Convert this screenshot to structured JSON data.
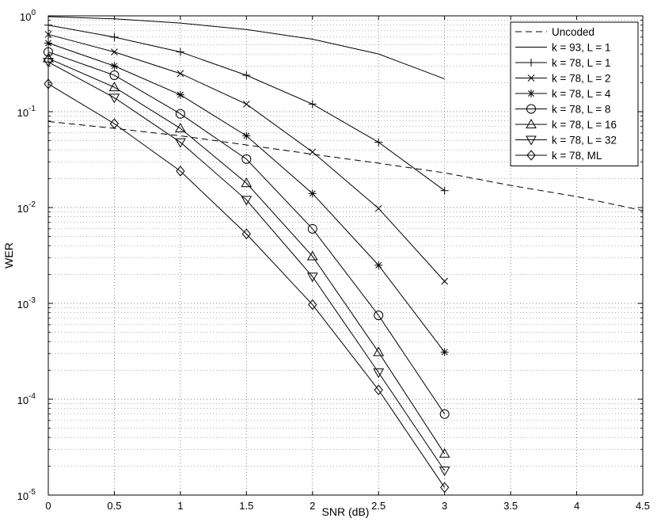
{
  "chart_data": {
    "type": "line",
    "xlabel": "SNR (dB)",
    "ylabel": "WER",
    "xlim": [
      0,
      4.5
    ],
    "ylim": [
      1e-05,
      1
    ],
    "yscale": "log",
    "grid": true,
    "legend_position": "top-right",
    "x_ticks": [
      "0",
      "0.5",
      "1",
      "1.5",
      "2",
      "2.5",
      "3",
      "3.5",
      "4",
      "4.5"
    ],
    "y_ticks": [
      {
        "base": "10",
        "exp": "0"
      },
      {
        "base": "10",
        "exp": "-1"
      },
      {
        "base": "10",
        "exp": "-2"
      },
      {
        "base": "10",
        "exp": "-3"
      },
      {
        "base": "10",
        "exp": "-4"
      },
      {
        "base": "10",
        "exp": "-5"
      }
    ],
    "series": [
      {
        "name": "Uncoded",
        "style": "dashed",
        "marker": "none",
        "x": [
          0,
          0.5,
          1,
          1.5,
          2,
          2.5,
          3,
          3.5,
          4,
          4.5
        ],
        "y": [
          0.079,
          0.067,
          0.056,
          0.045,
          0.036,
          0.029,
          0.023,
          0.017,
          0.013,
          0.0093
        ]
      },
      {
        "name": "k = 93, L = 1",
        "style": "solid",
        "marker": "none",
        "x": [
          0,
          0.5,
          1,
          1.5,
          2,
          2.5,
          3
        ],
        "y": [
          0.98,
          0.93,
          0.84,
          0.72,
          0.57,
          0.4,
          0.22
        ]
      },
      {
        "name": "k = 78, L = 1",
        "style": "solid",
        "marker": "plus",
        "x": [
          0,
          0.5,
          1,
          1.5,
          2,
          2.5,
          3
        ],
        "y": [
          0.8,
          0.6,
          0.42,
          0.24,
          0.12,
          0.048,
          0.015
        ]
      },
      {
        "name": "k = 78, L = 2",
        "style": "solid",
        "marker": "x",
        "x": [
          0,
          0.5,
          1,
          1.5,
          2,
          2.5,
          3
        ],
        "y": [
          0.64,
          0.42,
          0.25,
          0.12,
          0.038,
          0.0098,
          0.0017
        ]
      },
      {
        "name": "k = 78, L = 4",
        "style": "solid",
        "marker": "star",
        "x": [
          0,
          0.5,
          1,
          1.5,
          2,
          2.5,
          3
        ],
        "y": [
          0.52,
          0.3,
          0.15,
          0.056,
          0.014,
          0.0025,
          0.00031
        ]
      },
      {
        "name": "k = 78, L = 8",
        "style": "solid",
        "marker": "circle",
        "x": [
          0,
          0.5,
          1,
          1.5,
          2,
          2.5,
          3
        ],
        "y": [
          0.42,
          0.24,
          0.095,
          0.032,
          0.006,
          0.00075,
          7e-05
        ]
      },
      {
        "name": "k = 78, L = 16",
        "style": "solid",
        "marker": "triangle-up",
        "x": [
          0,
          0.5,
          1,
          1.5,
          2,
          2.5,
          3
        ],
        "y": [
          0.36,
          0.18,
          0.067,
          0.018,
          0.0031,
          0.00031,
          2.7e-05
        ]
      },
      {
        "name": "k = 78, L = 32",
        "style": "solid",
        "marker": "triangle-down",
        "x": [
          0,
          0.5,
          1,
          1.5,
          2,
          2.5,
          3
        ],
        "y": [
          0.33,
          0.14,
          0.048,
          0.012,
          0.0019,
          0.00019,
          1.8e-05
        ]
      },
      {
        "name": "k = 78, ML",
        "style": "solid",
        "marker": "diamond",
        "x": [
          0,
          0.5,
          1,
          1.5,
          2,
          2.5,
          3
        ],
        "y": [
          0.195,
          0.075,
          0.024,
          0.0053,
          0.00097,
          0.000125,
          1.2e-05
        ]
      }
    ]
  }
}
